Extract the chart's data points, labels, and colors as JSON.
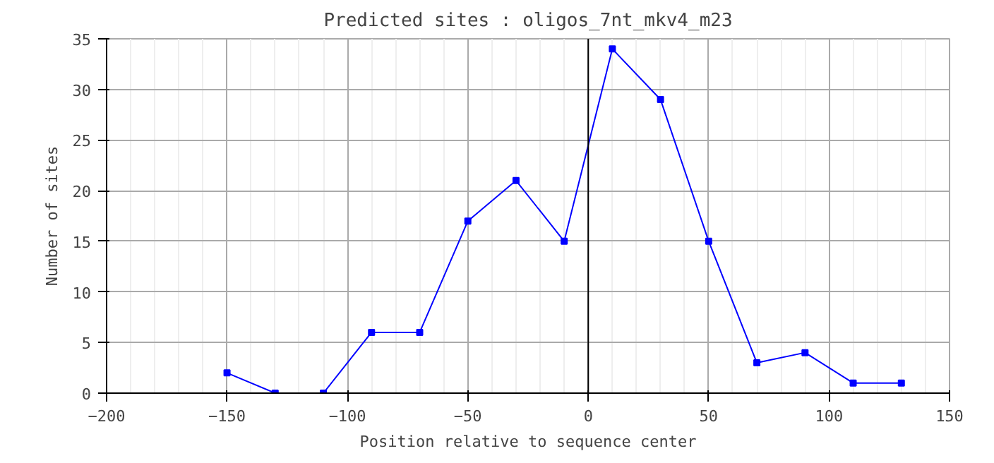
{
  "chart_data": {
    "type": "line",
    "title": "Predicted sites : oligos_7nt_mkv4_m23",
    "xlabel": "Position relative to sequence center",
    "ylabel": "Number of sites",
    "x": [
      -150,
      -130,
      -110,
      -90,
      -70,
      -50,
      -30,
      -10,
      10,
      30,
      50,
      70,
      90,
      110,
      130
    ],
    "series": [
      {
        "color": "#0000ff",
        "values": [
          2,
          0,
          0,
          6,
          6,
          17,
          21,
          15,
          34,
          29,
          15,
          3,
          4,
          1,
          1
        ]
      }
    ],
    "xlim": [
      -200,
      150
    ],
    "xticks": [
      -200,
      -150,
      -100,
      -50,
      0,
      50,
      100,
      150
    ],
    "ylim": [
      0,
      35
    ],
    "yticks": [
      0,
      5,
      10,
      15,
      20,
      25,
      30,
      35
    ],
    "ref_lines": [
      {
        "axis": "x",
        "value": 0,
        "color": "#000000"
      }
    ],
    "grid": true,
    "marker": "square",
    "line_style": "solid"
  }
}
